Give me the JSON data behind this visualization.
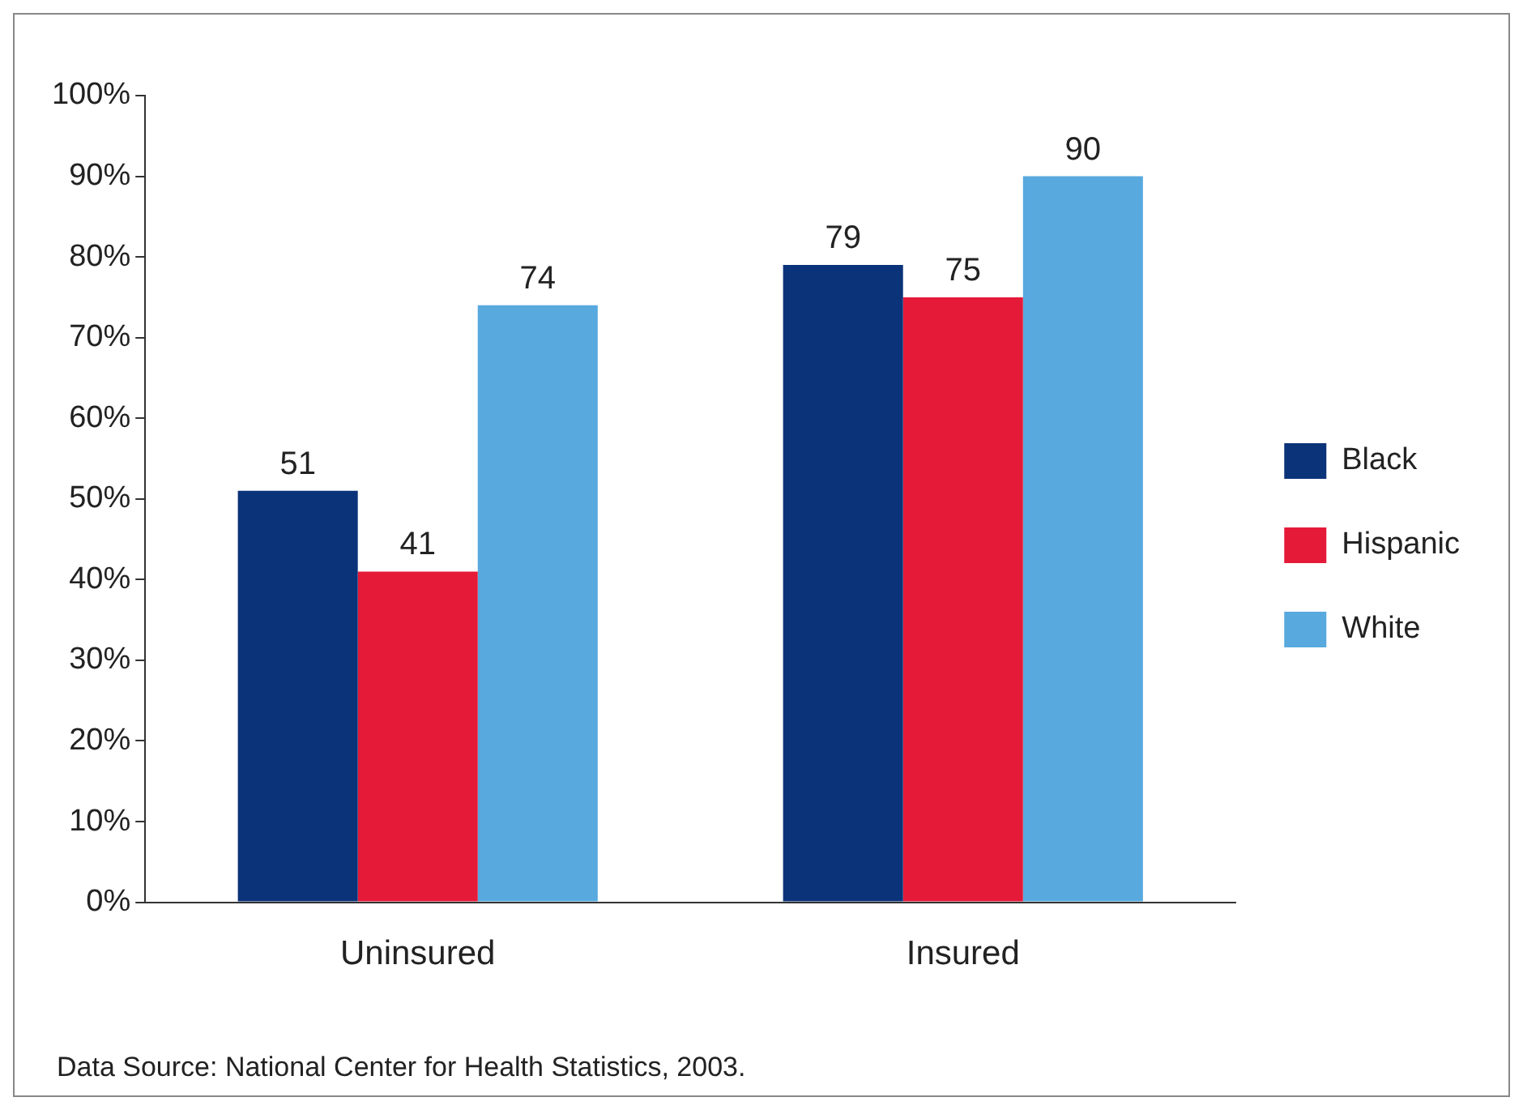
{
  "chart_data": {
    "type": "bar",
    "categories": [
      "Uninsured",
      "Insured"
    ],
    "series": [
      {
        "name": "Black",
        "color": "#0b3379",
        "values": [
          51,
          79
        ]
      },
      {
        "name": "Hispanic",
        "color": "#e41a38",
        "values": [
          41,
          75
        ]
      },
      {
        "name": "White",
        "color": "#57a9de",
        "values": [
          74,
          90
        ]
      }
    ],
    "ylim": [
      0,
      100
    ],
    "yticks": [
      {
        "value": 0,
        "label": "0%"
      },
      {
        "value": 10,
        "label": "10%"
      },
      {
        "value": 20,
        "label": "20%"
      },
      {
        "value": 30,
        "label": "30%"
      },
      {
        "value": 40,
        "label": "40%"
      },
      {
        "value": 50,
        "label": "50%"
      },
      {
        "value": 60,
        "label": "60%"
      },
      {
        "value": 70,
        "label": "70%"
      },
      {
        "value": 80,
        "label": "80%"
      },
      {
        "value": 90,
        "label": "90%"
      },
      {
        "value": 100,
        "label": "100%"
      }
    ],
    "data_labels": true,
    "grid": false,
    "legend": "right",
    "annotations": [
      "Data Source: National Center for Health Statistics, 2003."
    ]
  }
}
